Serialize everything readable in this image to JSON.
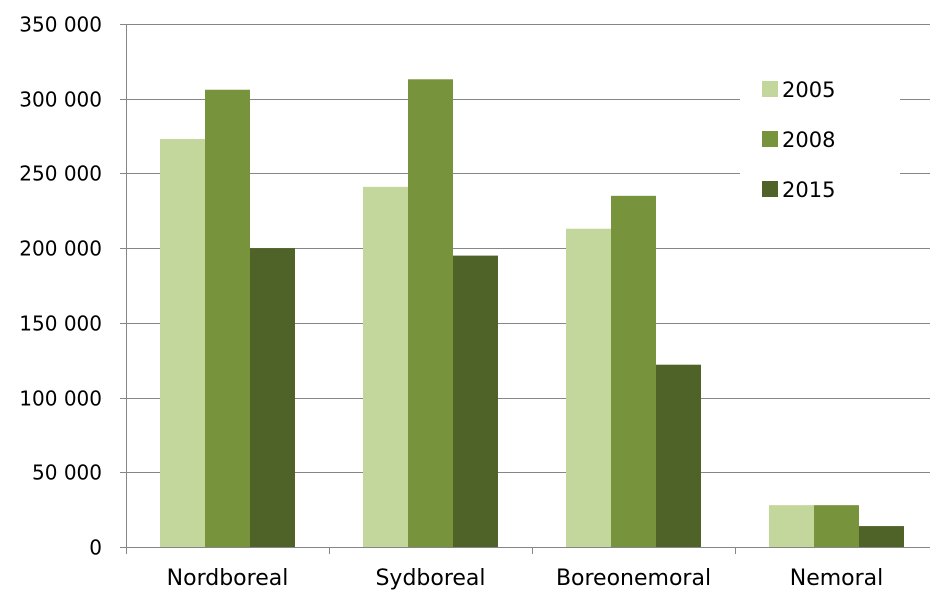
{
  "chart_data": {
    "type": "bar",
    "title": "",
    "xlabel": "",
    "ylabel": "",
    "categories": [
      "Nordboreal",
      "Sydboreal",
      "Boreonemoral",
      "Nemoral"
    ],
    "series": [
      {
        "name": "2005",
        "values": [
          273000,
          241000,
          213000,
          28000
        ],
        "color": "#c3d69b"
      },
      {
        "name": "2008",
        "values": [
          306000,
          313000,
          235000,
          28000
        ],
        "color": "#77933c"
      },
      {
        "name": "2015",
        "values": [
          200000,
          195000,
          122000,
          14000
        ],
        "color": "#4f6228"
      }
    ],
    "ylim": [
      0,
      350000
    ],
    "yticks": [
      0,
      50000,
      100000,
      150000,
      200000,
      250000,
      300000,
      350000
    ],
    "ytick_labels": [
      "0",
      "50 000",
      "100 000",
      "150 000",
      "200 000",
      "250 000",
      "300 000",
      "350 000"
    ],
    "grid": true,
    "legend_position": "top-right",
    "colors": {
      "gridline": "#868686",
      "axis": "#868686"
    }
  }
}
